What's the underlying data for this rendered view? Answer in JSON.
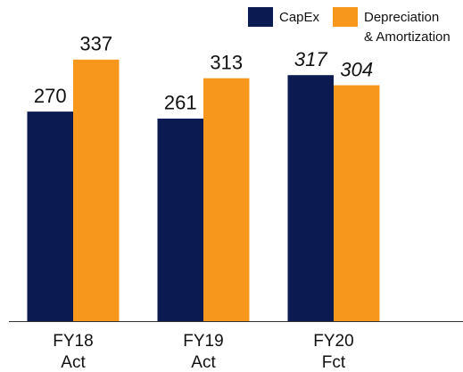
{
  "chart_data": {
    "type": "bar",
    "categories": [
      "FY18\nAct",
      "FY19\nAct",
      "FY20\nFct"
    ],
    "series": [
      {
        "name": "CapEx",
        "color": "#0c1a52",
        "values": [
          270,
          261,
          317
        ]
      },
      {
        "name": "Depreciation\n& Amortization",
        "color": "#f7981d",
        "values": [
          337,
          313,
          304
        ]
      }
    ],
    "italic_labels": [
      false,
      false,
      true
    ],
    "legend": "top-right"
  }
}
